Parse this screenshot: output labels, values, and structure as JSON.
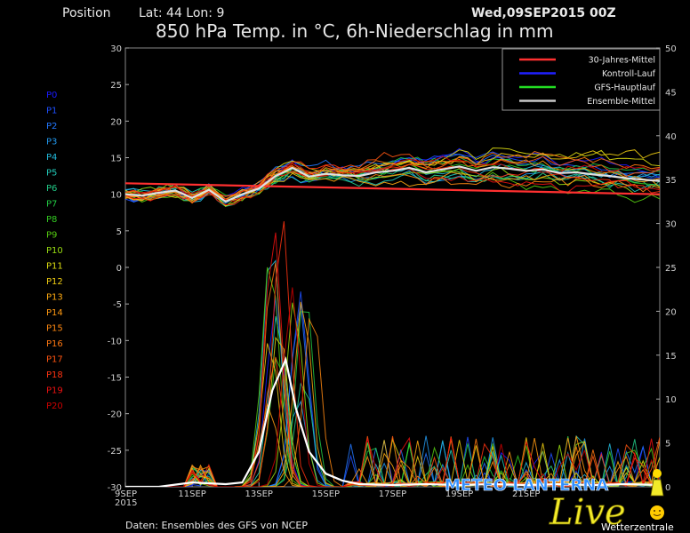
{
  "header": {
    "position_label": "Position",
    "coords": "Lat: 44 Lon: 9",
    "run": "Wed,09SEP2015 00Z",
    "title": "850 hPa Temp. in °C, 6h-Niederschlag in mm"
  },
  "footer": {
    "source": "Daten: Ensembles des GFS von NCEP"
  },
  "logo": {
    "main": "METEO LANTERNA",
    "live": "Live",
    "sub": "Wetterzentrale"
  },
  "members": [
    {
      "label": "P0",
      "color": "#1a1aff"
    },
    {
      "label": "P1",
      "color": "#1e50ff"
    },
    {
      "label": "P2",
      "color": "#2277ff"
    },
    {
      "label": "P3",
      "color": "#2299ee"
    },
    {
      "label": "P4",
      "color": "#22bbdd"
    },
    {
      "label": "P5",
      "color": "#22ccbb"
    },
    {
      "label": "P6",
      "color": "#22cc88"
    },
    {
      "label": "P7",
      "color": "#22cc44"
    },
    {
      "label": "P8",
      "color": "#33cc22"
    },
    {
      "label": "P9",
      "color": "#55cc11"
    },
    {
      "label": "P10",
      "color": "#99dd11"
    },
    {
      "label": "P11",
      "color": "#dddd11"
    },
    {
      "label": "P12",
      "color": "#eecc11"
    },
    {
      "label": "P13",
      "color": "#ffaa11"
    },
    {
      "label": "P14",
      "color": "#ff9911"
    },
    {
      "label": "P15",
      "color": "#ff8811"
    },
    {
      "label": "P16",
      "color": "#ff7711"
    },
    {
      "label": "P17",
      "color": "#ff5511"
    },
    {
      "label": "P18",
      "color": "#ff3311"
    },
    {
      "label": "P19",
      "color": "#ee1111"
    },
    {
      "label": "P20",
      "color": "#cc0000"
    }
  ],
  "chart_data": {
    "type": "line",
    "x_ticks": [
      "9SEP\n2015",
      "11SEP",
      "13SEP",
      "15SEP",
      "17SEP",
      "19SEP",
      "21SEP"
    ],
    "x_range_days": [
      0,
      16
    ],
    "y_left": {
      "range": [
        -30,
        30
      ],
      "ticks": [
        30,
        25,
        20,
        15,
        10,
        5,
        0,
        -5,
        -10,
        -15,
        -20,
        -25,
        -30
      ]
    },
    "y_right": {
      "range": [
        0,
        50
      ],
      "ticks": [
        50,
        45,
        40,
        35,
        30,
        25,
        20,
        15,
        10,
        5,
        0
      ]
    },
    "legend": {
      "placement": "top-right",
      "entries": [
        {
          "name": "30-Jahres-Mittel",
          "color": "#ff3030"
        },
        {
          "name": "Kontroll-Lauf",
          "color": "#2020ff"
        },
        {
          "name": "GFS-Hauptlauf",
          "color": "#22dd22"
        },
        {
          "name": "Ensemble-Mittel",
          "color": "#c8c8c8"
        }
      ]
    },
    "series": [
      {
        "name": "30-Jahres-Mittel",
        "color": "#ff3030",
        "axis": "left",
        "x": [
          0,
          16
        ],
        "values": [
          11.5,
          10.0
        ]
      },
      {
        "name": "Ensemble-Mittel",
        "color": "#e0e0e0",
        "axis": "left",
        "x": [
          0,
          0.5,
          1,
          1.5,
          2,
          2.5,
          3,
          3.5,
          4,
          4.5,
          5,
          5.5,
          6,
          6.5,
          7,
          7.5,
          8,
          8.5,
          9,
          9.5,
          10,
          10.5,
          11,
          11.5,
          12,
          12.5,
          13,
          13.5,
          14,
          14.5,
          15,
          15.5,
          16
        ],
        "values": [
          10,
          9.8,
          10.2,
          10.5,
          9.5,
          10.6,
          9.0,
          10.0,
          10.8,
          12.5,
          13.6,
          12.4,
          12.8,
          12.6,
          12.5,
          13.0,
          13.2,
          13.6,
          13.0,
          13.4,
          13.8,
          13.2,
          13.7,
          13.5,
          13.2,
          13.4,
          12.9,
          13.0,
          12.7,
          12.5,
          12.2,
          12.0,
          11.8
        ]
      },
      {
        "name": "Ensemble-Mittel Niederschlag",
        "color": "#ffffff",
        "axis": "right",
        "x": [
          0,
          1,
          2,
          3,
          3.5,
          4,
          4.4,
          4.8,
          5.1,
          5.5,
          6,
          6.5,
          7,
          8,
          9,
          10,
          11,
          12,
          13,
          14,
          15,
          16
        ],
        "values": [
          0,
          0,
          0.5,
          0.3,
          0.5,
          4,
          11,
          14.5,
          9,
          4,
          1.5,
          0.7,
          0.3,
          0.2,
          0.3,
          0.2,
          0.3,
          0.2,
          0.3,
          0.2,
          0.3,
          0.2
        ]
      }
    ]
  }
}
